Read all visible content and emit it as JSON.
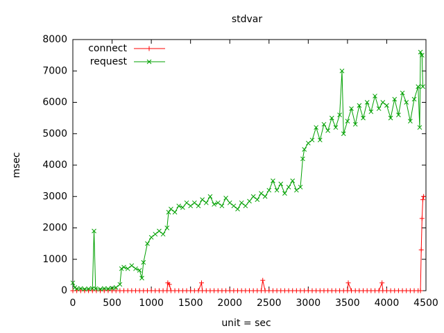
{
  "chart_data": {
    "type": "line",
    "title": "stdvar",
    "x_label": "unit = sec",
    "y_label": "msec",
    "xlim": [
      0,
      4500
    ],
    "xticks": [
      0,
      500,
      1000,
      1500,
      2000,
      2500,
      3000,
      3500,
      4000,
      4500
    ],
    "ylim": [
      0,
      8000
    ],
    "yticks": [
      0,
      1000,
      2000,
      3000,
      4000,
      5000,
      6000,
      7000,
      8000
    ],
    "legend": "top-left",
    "series": [
      {
        "name": "connect",
        "color": "#ff0000",
        "marker": "plus",
        "x": [
          0,
          50,
          100,
          150,
          200,
          250,
          300,
          350,
          400,
          450,
          500,
          550,
          600,
          650,
          700,
          750,
          800,
          850,
          900,
          950,
          1000,
          1050,
          1100,
          1150,
          1200,
          1210,
          1230,
          1250,
          1300,
          1350,
          1400,
          1450,
          1500,
          1550,
          1600,
          1640,
          1650,
          1700,
          1750,
          1800,
          1850,
          1900,
          1950,
          2000,
          2050,
          2100,
          2150,
          2200,
          2250,
          2300,
          2350,
          2400,
          2420,
          2450,
          2500,
          2550,
          2600,
          2650,
          2700,
          2750,
          2800,
          2850,
          2900,
          2950,
          3000,
          3050,
          3100,
          3150,
          3200,
          3250,
          3300,
          3350,
          3400,
          3450,
          3500,
          3510,
          3550,
          3600,
          3650,
          3700,
          3750,
          3800,
          3850,
          3900,
          3940,
          3950,
          4000,
          4050,
          4100,
          4150,
          4200,
          4250,
          4300,
          4350,
          4400,
          4430,
          4440,
          4450,
          4460,
          4470
        ],
        "values": [
          0,
          0,
          0,
          0,
          0,
          0,
          0,
          0,
          0,
          0,
          0,
          0,
          0,
          0,
          0,
          0,
          0,
          0,
          0,
          0,
          0,
          0,
          0,
          0,
          0,
          250,
          200,
          0,
          0,
          0,
          0,
          0,
          0,
          0,
          0,
          250,
          0,
          0,
          0,
          0,
          0,
          0,
          0,
          0,
          0,
          0,
          0,
          0,
          0,
          0,
          0,
          0,
          330,
          0,
          0,
          0,
          0,
          0,
          0,
          0,
          0,
          0,
          0,
          0,
          0,
          0,
          0,
          0,
          0,
          0,
          0,
          0,
          0,
          0,
          0,
          250,
          0,
          0,
          0,
          0,
          0,
          0,
          0,
          0,
          250,
          0,
          0,
          0,
          0,
          0,
          0,
          0,
          0,
          0,
          0,
          0,
          1300,
          2300,
          2900,
          3000
        ]
      },
      {
        "name": "request",
        "color": "#00a000",
        "marker": "cross",
        "x": [
          0,
          25,
          50,
          100,
          150,
          200,
          250,
          270,
          290,
          350,
          400,
          450,
          500,
          550,
          600,
          620,
          650,
          700,
          750,
          800,
          850,
          880,
          900,
          950,
          1000,
          1050,
          1100,
          1150,
          1200,
          1220,
          1250,
          1300,
          1350,
          1400,
          1450,
          1500,
          1550,
          1600,
          1650,
          1700,
          1750,
          1800,
          1850,
          1900,
          1950,
          2000,
          2050,
          2100,
          2150,
          2200,
          2250,
          2300,
          2350,
          2400,
          2450,
          2500,
          2550,
          2600,
          2650,
          2700,
          2750,
          2800,
          2850,
          2900,
          2930,
          2950,
          3000,
          3050,
          3100,
          3150,
          3200,
          3250,
          3300,
          3350,
          3400,
          3430,
          3450,
          3500,
          3550,
          3600,
          3650,
          3700,
          3750,
          3800,
          3850,
          3900,
          3950,
          4000,
          4050,
          4100,
          4150,
          4200,
          4250,
          4300,
          4350,
          4400,
          4420,
          4430,
          4450,
          4460
        ],
        "values": [
          250,
          100,
          60,
          70,
          50,
          60,
          70,
          1900,
          60,
          50,
          70,
          60,
          80,
          100,
          200,
          700,
          750,
          700,
          800,
          700,
          650,
          400,
          900,
          1500,
          1700,
          1800,
          1900,
          1800,
          2000,
          2500,
          2600,
          2500,
          2700,
          2650,
          2800,
          2700,
          2800,
          2700,
          2900,
          2800,
          3000,
          2750,
          2800,
          2700,
          2950,
          2800,
          2700,
          2600,
          2800,
          2700,
          2850,
          3000,
          2900,
          3100,
          3000,
          3200,
          3500,
          3200,
          3400,
          3100,
          3300,
          3500,
          3200,
          3300,
          4200,
          4500,
          4700,
          4800,
          5200,
          4800,
          5300,
          5100,
          5500,
          5200,
          5600,
          7000,
          5000,
          5400,
          5800,
          5300,
          5900,
          5500,
          6000,
          5700,
          6200,
          5800,
          6000,
          5900,
          5500,
          6100,
          5600,
          6300,
          6000,
          5400,
          6100,
          6500,
          5200,
          7600,
          7500,
          6500
        ]
      }
    ]
  }
}
